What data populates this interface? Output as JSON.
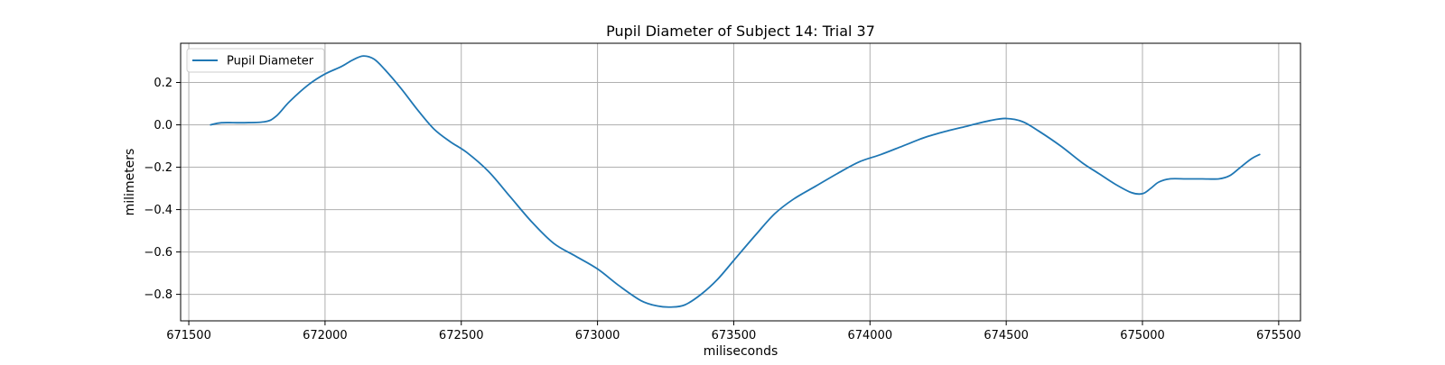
{
  "chart_data": {
    "type": "line",
    "title": "Pupil Diameter of Subject 14: Trial 37",
    "xlabel": "miliseconds",
    "ylabel": "milimeters",
    "xlim": [
      671470,
      675580
    ],
    "ylim": [
      -0.925,
      0.385
    ],
    "x_ticks": [
      671500,
      672000,
      672500,
      673000,
      673500,
      674000,
      674500,
      675000,
      675500
    ],
    "y_ticks": [
      -0.8,
      -0.6,
      -0.4,
      -0.2,
      0.0,
      0.2
    ],
    "x_tick_labels": [
      "671500",
      "672000",
      "672500",
      "673000",
      "673500",
      "674000",
      "674500",
      "675000",
      "675500"
    ],
    "y_tick_labels": [
      "−0.8",
      "−0.6",
      "−0.4",
      "−0.2",
      "0.0",
      "0.2"
    ],
    "grid": true,
    "legend_position": "top-left",
    "series": [
      {
        "name": "Pupil Diameter",
        "color": "#1f77b4",
        "x": [
          671580,
          671620,
          671700,
          671780,
          671820,
          671870,
          671940,
          672000,
          672060,
          672100,
          672140,
          672180,
          672220,
          672280,
          672340,
          672400,
          672460,
          672520,
          672600,
          672680,
          672760,
          672840,
          672920,
          673000,
          673080,
          673160,
          673220,
          673270,
          673320,
          673380,
          673440,
          673500,
          673580,
          673650,
          673720,
          673800,
          673880,
          673960,
          674040,
          674120,
          674200,
          674280,
          674360,
          674440,
          674500,
          674560,
          674620,
          674700,
          674780,
          674840,
          674900,
          674960,
          675000,
          675030,
          675060,
          675100,
          675160,
          675220,
          675280,
          675320,
          675360,
          675400,
          675430
        ],
        "y": [
          0.0,
          0.01,
          0.01,
          0.015,
          0.04,
          0.11,
          0.19,
          0.24,
          0.275,
          0.305,
          0.325,
          0.31,
          0.26,
          0.17,
          0.07,
          -0.02,
          -0.08,
          -0.13,
          -0.22,
          -0.34,
          -0.46,
          -0.56,
          -0.62,
          -0.68,
          -0.76,
          -0.83,
          -0.855,
          -0.86,
          -0.85,
          -0.8,
          -0.73,
          -0.64,
          -0.52,
          -0.42,
          -0.35,
          -0.29,
          -0.23,
          -0.175,
          -0.14,
          -0.1,
          -0.06,
          -0.03,
          -0.005,
          0.02,
          0.03,
          0.015,
          -0.03,
          -0.1,
          -0.18,
          -0.23,
          -0.28,
          -0.32,
          -0.325,
          -0.3,
          -0.27,
          -0.255,
          -0.255,
          -0.255,
          -0.255,
          -0.24,
          -0.2,
          -0.16,
          -0.14
        ]
      }
    ]
  }
}
